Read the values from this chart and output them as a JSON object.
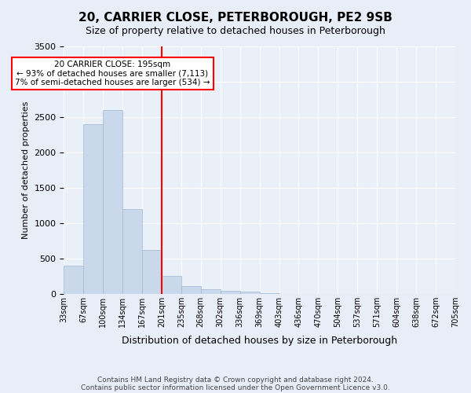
{
  "title": "20, CARRIER CLOSE, PETERBOROUGH, PE2 9SB",
  "subtitle": "Size of property relative to detached houses in Peterborough",
  "xlabel": "Distribution of detached houses by size in Peterborough",
  "ylabel": "Number of detached properties",
  "footnote1": "Contains HM Land Registry data © Crown copyright and database right 2024.",
  "footnote2": "Contains public sector information licensed under the Open Government Licence v3.0.",
  "bin_labels": [
    "33sqm",
    "67sqm",
    "100sqm",
    "134sqm",
    "167sqm",
    "201sqm",
    "235sqm",
    "268sqm",
    "302sqm",
    "336sqm",
    "369sqm",
    "403sqm",
    "436sqm",
    "470sqm",
    "504sqm",
    "537sqm",
    "571sqm",
    "604sqm",
    "638sqm",
    "672sqm",
    "705sqm"
  ],
  "bar_values": [
    400,
    2400,
    2600,
    1200,
    620,
    250,
    110,
    60,
    45,
    30,
    5,
    0,
    0,
    0,
    0,
    0,
    0,
    0,
    0,
    0
  ],
  "bar_color": "#c9d9eb",
  "bar_edge_color": "#a0b8d0",
  "vline_x": 5,
  "vline_color": "red",
  "annotation_title": "20 CARRIER CLOSE: 195sqm",
  "annotation_line2": "← 93% of detached houses are smaller (7,113)",
  "annotation_line3": "7% of semi-detached houses are larger (534) →",
  "annotation_box_color": "red",
  "annotation_text_color": "black",
  "ylim": [
    0,
    3500
  ],
  "yticks": [
    0,
    500,
    1000,
    1500,
    2000,
    2500,
    3000,
    3500
  ],
  "background_color": "#e8eef7",
  "plot_bg_color": "#eaf0f8",
  "grid_color": "white"
}
